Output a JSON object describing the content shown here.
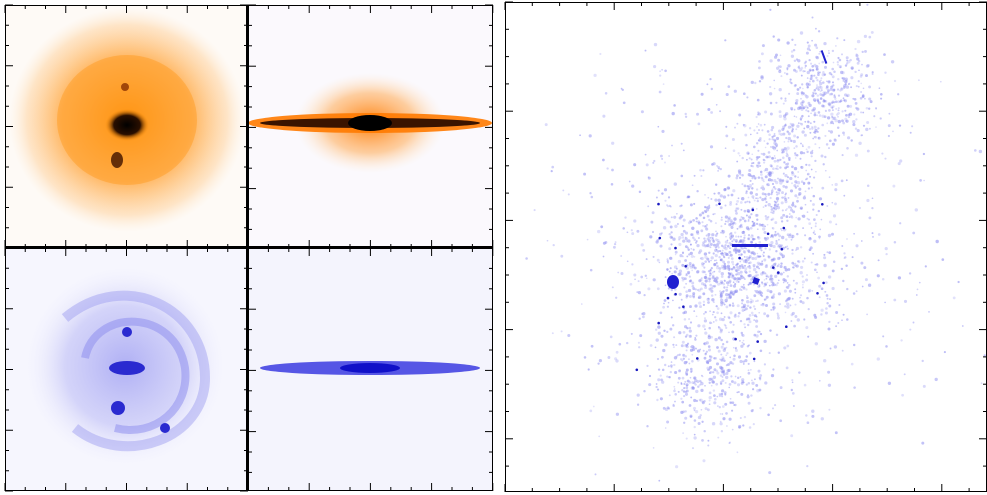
{
  "figure": {
    "left_grid": {
      "panels": [
        {
          "id": "orange-face-on",
          "colormap": "orange",
          "view": "face-on"
        },
        {
          "id": "orange-edge-on",
          "colormap": "orange",
          "view": "edge-on"
        },
        {
          "id": "blue-face-on",
          "colormap": "blue",
          "view": "face-on"
        },
        {
          "id": "blue-edge-on",
          "colormap": "blue",
          "view": "edge-on"
        }
      ]
    },
    "right_panel": {
      "id": "blue-particle-map",
      "colormap": "blue",
      "style": "scatter"
    }
  },
  "colors": {
    "orange_core": "#1a0a00",
    "orange_mid": "#ff8c00",
    "orange_outer": "#ffd9a8",
    "blue_core": "#1f1fd0",
    "blue_mid": "#8c8cf0",
    "blue_outer": "#e4e4fb",
    "axis": "#000000"
  }
}
